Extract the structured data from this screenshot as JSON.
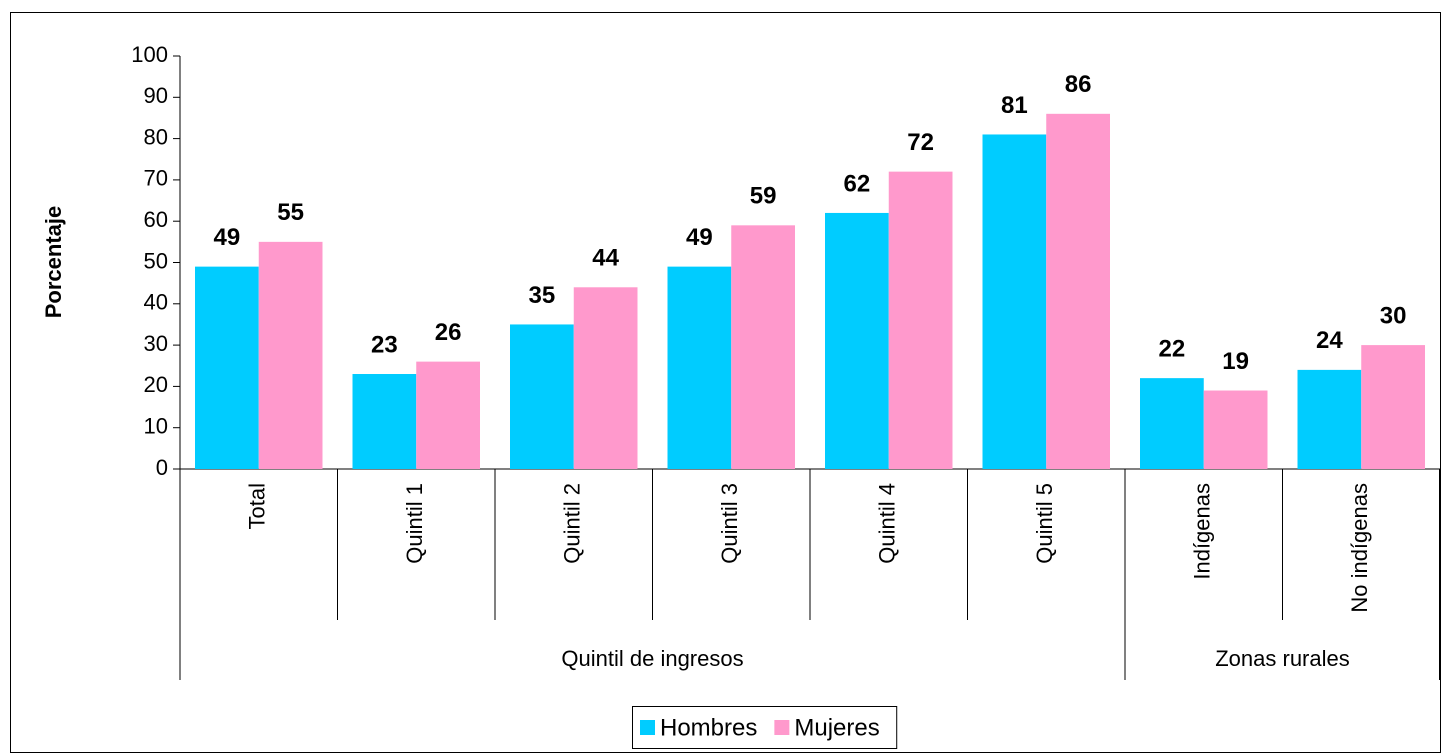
{
  "chart_data": {
    "type": "bar",
    "y_label": "Porcentaje",
    "category_groups": [
      {
        "name": "Quintil de ingresos",
        "categories": [
          "Total",
          "Quintil 1",
          "Quintil 2",
          "Quintil 3",
          "Quintil 4",
          "Quintil 5"
        ]
      },
      {
        "name": "Zonas rurales",
        "categories": [
          "Indígenas",
          "No indígenas"
        ]
      }
    ],
    "series": [
      {
        "name": "Hombres",
        "color": "#00ccff",
        "values": [
          49,
          23,
          35,
          49,
          62,
          81,
          22,
          24
        ]
      },
      {
        "name": "Mujeres",
        "color": "#ff99cc",
        "values": [
          55,
          26,
          44,
          59,
          72,
          86,
          19,
          30
        ]
      }
    ],
    "ylim": [
      0,
      100
    ],
    "yticks": [
      0,
      10,
      20,
      30,
      40,
      50,
      60,
      70,
      80,
      90,
      100
    ],
    "legend": "bottom"
  }
}
